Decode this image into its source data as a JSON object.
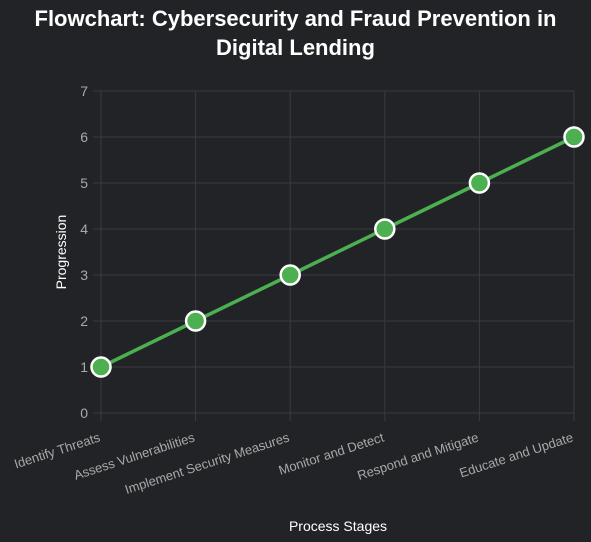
{
  "chart_data": {
    "type": "line",
    "title_lines": [
      "Flowchart: Cybersecurity and Fraud Prevention in",
      "Digital Lending"
    ],
    "xlabel": "Process Stages",
    "ylabel": "Progression",
    "categories": [
      "Identify Threats",
      "Assess Vulnerabilities",
      "Implement Security Measures",
      "Monitor and Detect",
      "Respond and Mitigate",
      "Educate and Update"
    ],
    "series": [
      {
        "values": [
          1,
          2,
          3,
          4,
          5,
          6
        ]
      }
    ],
    "ylim": [
      0,
      7
    ],
    "yticks": [
      "0",
      "1",
      "2",
      "3",
      "4",
      "5",
      "6",
      "7"
    ],
    "grid": true,
    "legend": "none",
    "colors": {
      "background": "#222326",
      "line": "#4caf50",
      "marker_fill": "#4caf50",
      "marker_stroke": "#ffffff",
      "grid": "#3a3b3f",
      "tick_text": "#a9a9a9",
      "title_text": "#ffffff"
    }
  }
}
